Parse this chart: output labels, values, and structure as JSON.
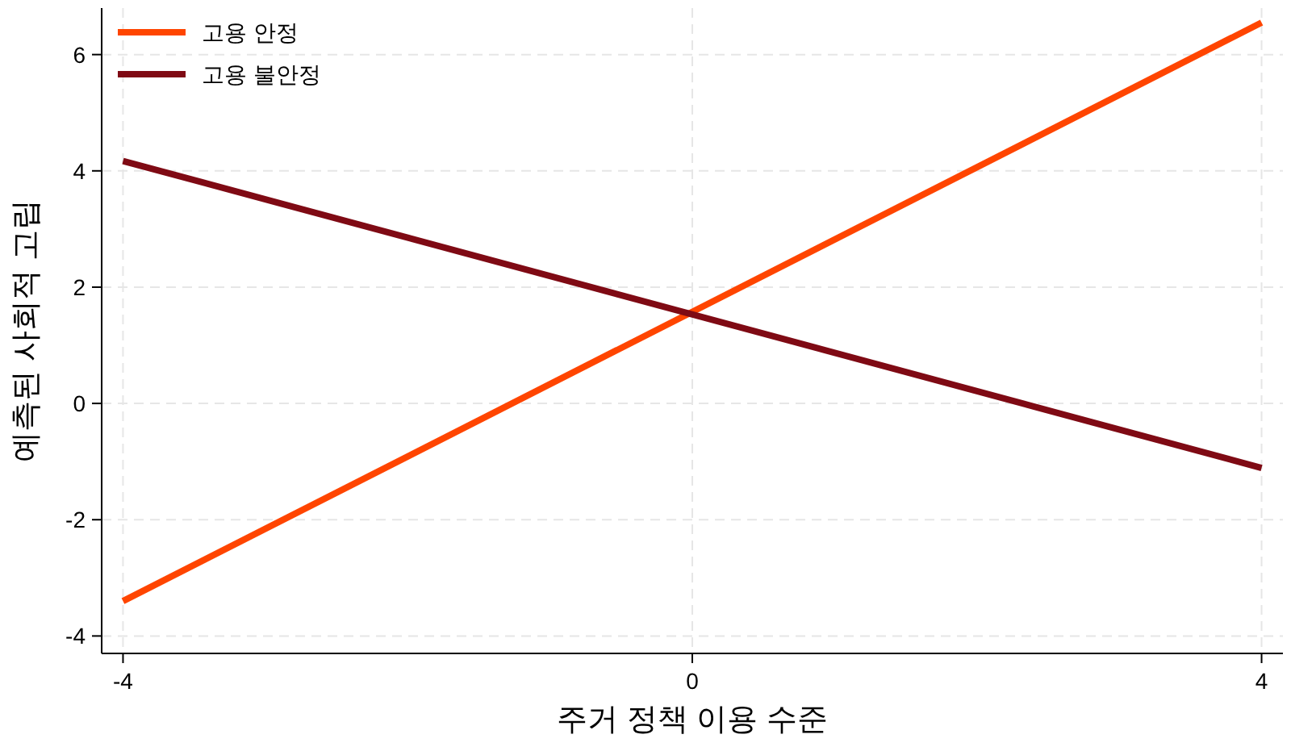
{
  "chart_data": {
    "type": "line",
    "xlabel": "주거 정책 이용 수준",
    "ylabel": "예측된 사회적 고립",
    "x": [
      -4,
      4
    ],
    "series": [
      {
        "name": "고용 안정",
        "color": "#ff4500",
        "values": [
          -3.4,
          6.55
        ]
      },
      {
        "name": "고용 불안정",
        "color": "#7f0a14",
        "values": [
          4.17,
          -1.11
        ]
      }
    ],
    "xlim": [
      -4.15,
      4.15
    ],
    "ylim": [
      -4.3,
      6.8
    ],
    "xticks": [
      -4,
      0,
      4
    ],
    "yticks": [
      -4,
      -2,
      0,
      2,
      4,
      6
    ],
    "grid": true,
    "legend": "top left",
    "marker": "none",
    "line_style": "solid"
  }
}
